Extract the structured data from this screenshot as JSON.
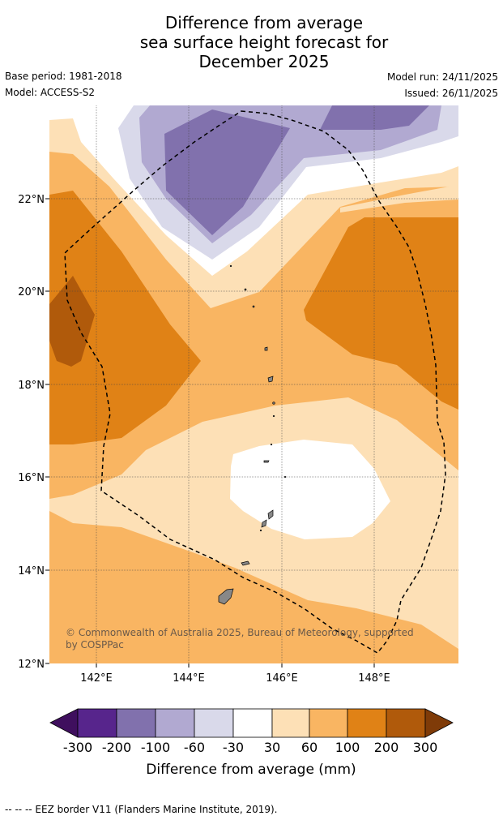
{
  "title": {
    "line1": "Difference from average",
    "line2": "sea surface height forecast for",
    "line3": "December 2025"
  },
  "meta": {
    "base_period": "Base period: 1981-2018",
    "model": "Model: ACCESS-S2",
    "model_run": "Model run: 24/11/2025",
    "issued": "Issued: 26/11/2025"
  },
  "map": {
    "lat_labels": [
      "22°N",
      "20°N",
      "18°N",
      "16°N",
      "14°N",
      "12°N"
    ],
    "lon_labels": [
      "142°E",
      "144°E",
      "146°E",
      "148°E"
    ],
    "copyright": "© Commonwealth of Australia 2025, Bureau of Meteorology, supported",
    "copyright2": "by COSPPac"
  },
  "legend": {
    "ticks": [
      "-300",
      "-200",
      "-100",
      "-60",
      "-30",
      "30",
      "60",
      "100",
      "200",
      "300"
    ],
    "label": "Difference from average (mm)",
    "colors": [
      "#3f0f5e",
      "#57258c",
      "#8171ad",
      "#b1a9d1",
      "#d9d9ea",
      "#ffffff",
      "#fde0b6",
      "#f9b562",
      "#e08216",
      "#b05a0b",
      "#7f3b08"
    ]
  },
  "footer": "--  --  -- EEZ border V11 (Flanders Marine Institute, 2019)."
}
